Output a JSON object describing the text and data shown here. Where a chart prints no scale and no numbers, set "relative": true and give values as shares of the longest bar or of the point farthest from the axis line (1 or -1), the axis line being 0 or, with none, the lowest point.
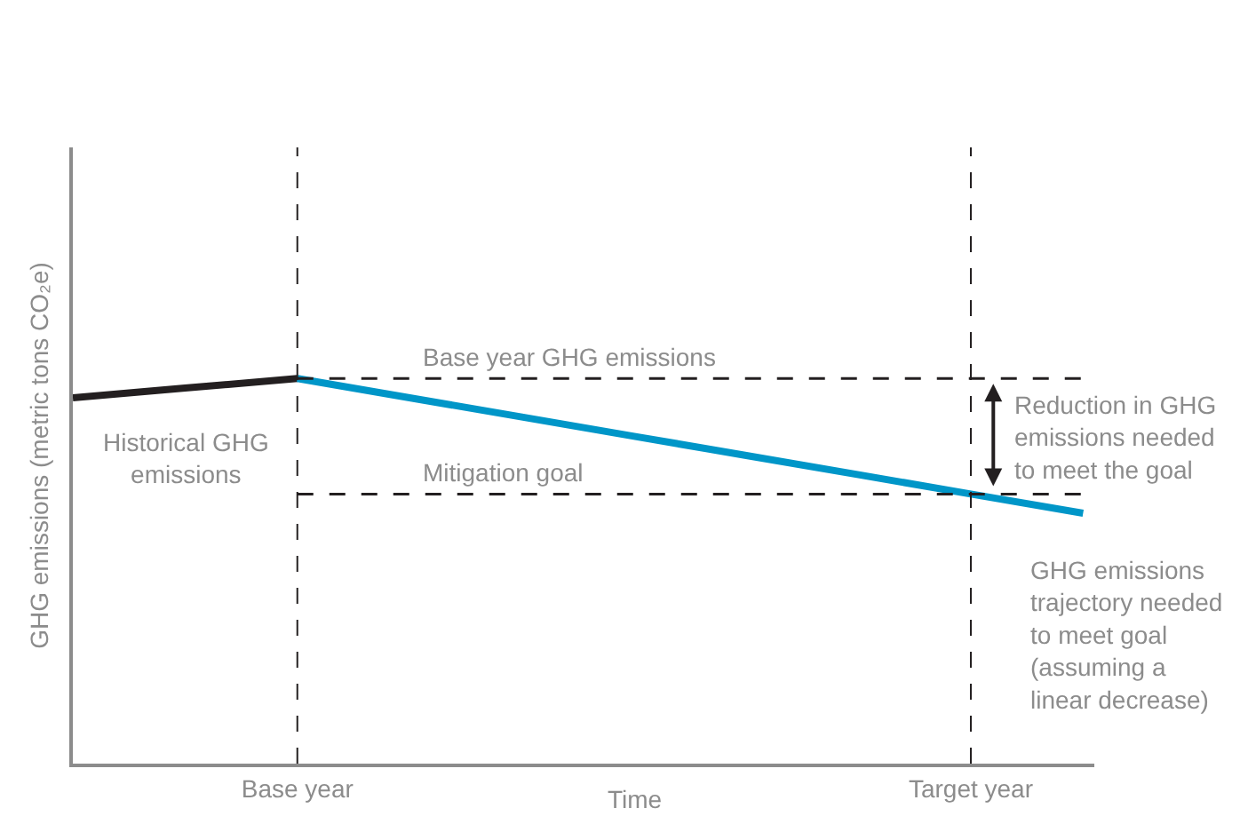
{
  "chart_data": {
    "type": "line",
    "relative": true,
    "ylabel": "GHG emissions (metric tons CO₂e)",
    "xlabel": "Time",
    "categories": [
      null,
      null,
      "Base year",
      null,
      null,
      null,
      null,
      null,
      "Target year",
      null
    ],
    "series": [
      {
        "name": "Historical GHG emissions",
        "color": "#231f20",
        "values": [
          0.95,
          0.975,
          1,
          null,
          null,
          null,
          null,
          null,
          null,
          null
        ]
      },
      {
        "name": "GHG emissions trajectory needed to meet goal (assuming a linear decrease)",
        "color": "#0096c8",
        "values": [
          null,
          null,
          1,
          0.95,
          0.9,
          0.85,
          0.8,
          0.75,
          0.7,
          0.65
        ]
      }
    ],
    "ref_lines": [
      {
        "axis": "x",
        "value": "Base year",
        "color": "#231f20",
        "line_style": "dashed"
      },
      {
        "axis": "x",
        "value": "Target year",
        "color": "#231f20",
        "line_style": "dashed"
      },
      {
        "axis": "y",
        "value": 1,
        "label": "Base year GHG emissions",
        "color": "#231f20",
        "line_style": "dashed"
      },
      {
        "axis": "y",
        "value": 0.7,
        "label": "Mitigation goal",
        "color": "#231f20",
        "line_style": "dashed"
      }
    ],
    "annotations": [
      "Reduction in GHG emissions needed to meet the goal"
    ],
    "marker": "none",
    "line_style": "solid"
  }
}
